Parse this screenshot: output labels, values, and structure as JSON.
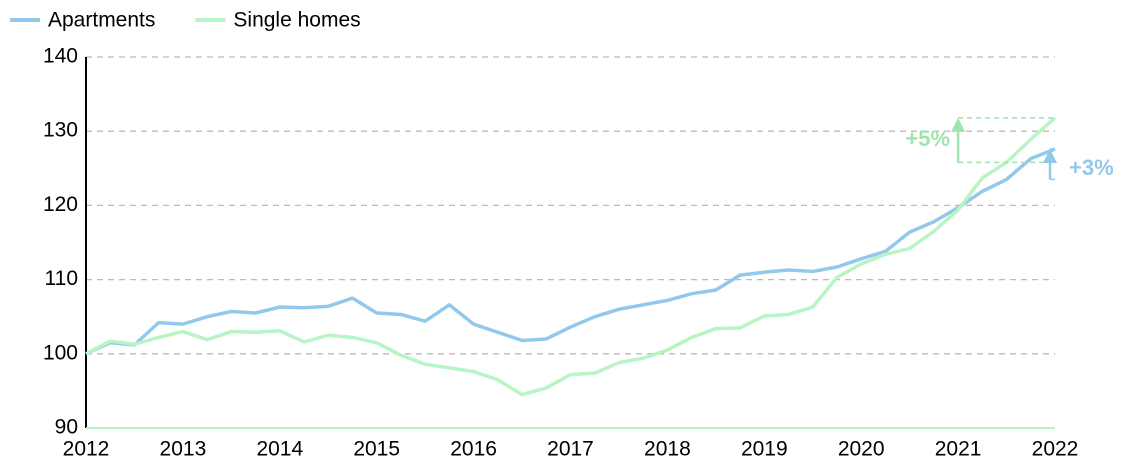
{
  "chart_data": {
    "type": "line",
    "x": [
      2012,
      2012.25,
      2012.5,
      2012.75,
      2013,
      2013.25,
      2013.5,
      2013.75,
      2014,
      2014.25,
      2014.5,
      2014.75,
      2015,
      2015.25,
      2015.5,
      2015.75,
      2016,
      2016.25,
      2016.5,
      2016.75,
      2017,
      2017.25,
      2017.5,
      2017.75,
      2018,
      2018.25,
      2018.5,
      2018.75,
      2019,
      2019.25,
      2019.5,
      2019.75,
      2020,
      2020.25,
      2020.5,
      2020.75,
      2021,
      2021.25,
      2021.5,
      2021.75,
      2022
    ],
    "series": [
      {
        "name": "Apartments",
        "color": "#92c9ea",
        "values": [
          100,
          101.5,
          101.2,
          104.2,
          104.0,
          105.0,
          105.7,
          105.5,
          106.3,
          106.2,
          106.4,
          107.5,
          105.5,
          105.3,
          104.4,
          106.6,
          104.0,
          102.9,
          101.8,
          102.0,
          103.6,
          105.0,
          106.0,
          106.6,
          107.2,
          108.1,
          108.6,
          110.6,
          111.0,
          111.3,
          111.1,
          111.7,
          112.8,
          113.8,
          116.4,
          117.8,
          119.7,
          121.9,
          123.5,
          126.3,
          127.6
        ]
      },
      {
        "name": "Single homes",
        "color": "#b8f4c4",
        "values": [
          100,
          101.7,
          101.3,
          102.2,
          103.0,
          101.9,
          103.0,
          102.9,
          103.1,
          101.6,
          102.5,
          102.2,
          101.5,
          99.8,
          98.6,
          98.1,
          97.6,
          96.5,
          94.5,
          95.4,
          97.2,
          97.4,
          98.8,
          99.4,
          100.5,
          102.2,
          103.4,
          103.5,
          105.1,
          105.3,
          106.3,
          110.3,
          112.1,
          113.4,
          114.2,
          116.5,
          119.4,
          123.7,
          125.8,
          128.9,
          131.8
        ]
      }
    ],
    "annotations": [
      {
        "text": "+5%",
        "color": "#9fe3ad"
      },
      {
        "text": "+3%",
        "color": "#92c9ea"
      }
    ],
    "xlim": [
      2012,
      2022
    ],
    "xticks": [
      2012,
      2013,
      2014,
      2015,
      2016,
      2017,
      2018,
      2019,
      2020,
      2021,
      2022
    ],
    "ylim": [
      90,
      140
    ],
    "yticks": [
      90,
      100,
      110,
      120,
      130,
      140
    ],
    "grid": true,
    "legend": "top-left"
  }
}
